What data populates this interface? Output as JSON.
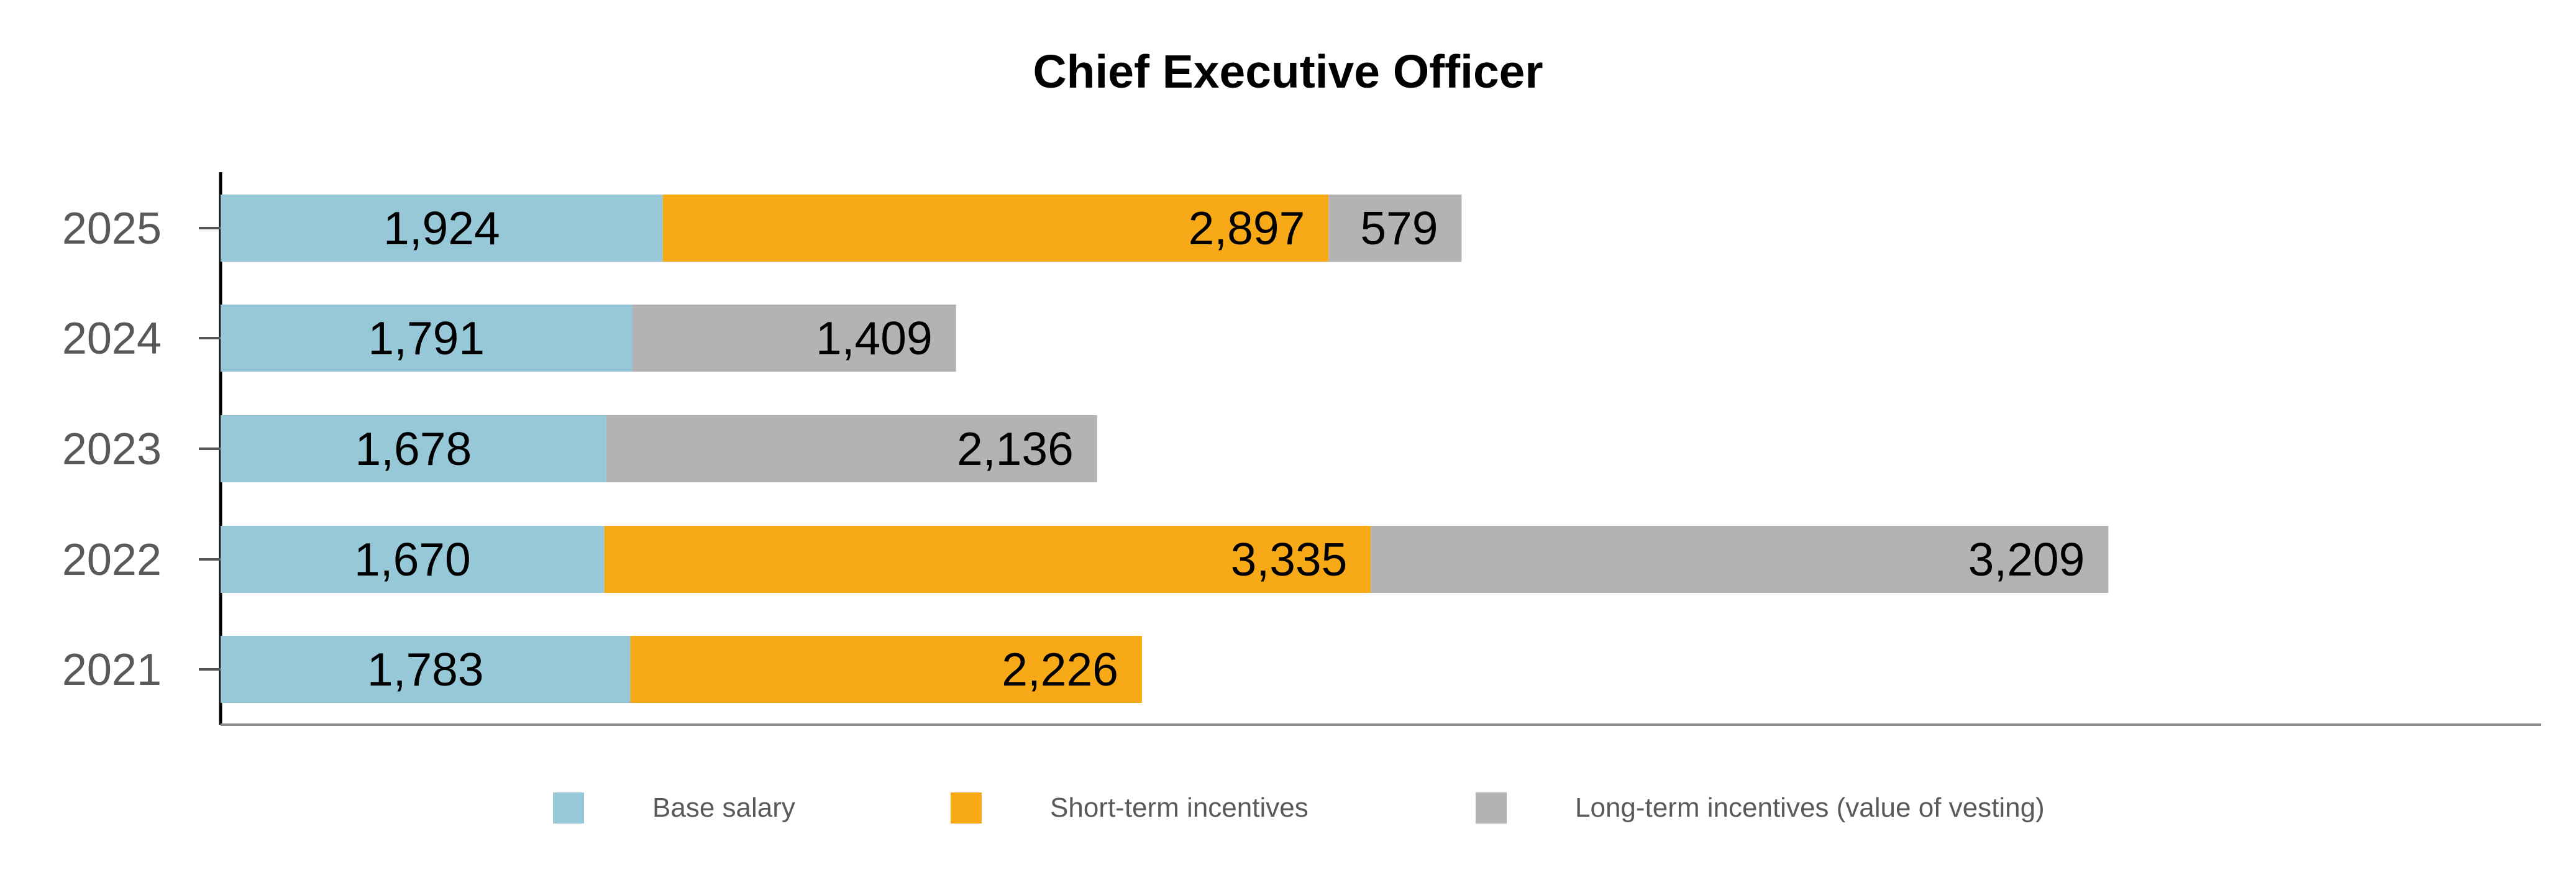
{
  "chart_data": {
    "type": "bar",
    "orientation": "horizontal",
    "stacked": true,
    "title": "Chief Executive Officer",
    "categories": [
      "2025",
      "2024",
      "2023",
      "2022",
      "2021"
    ],
    "series": [
      {
        "name": "Base salary",
        "color": "#97C8D8",
        "values": [
          1924,
          1791,
          1678,
          1670,
          1783
        ]
      },
      {
        "name": "Short-term incentives",
        "color": "#F7A918",
        "values": [
          2897,
          0,
          0,
          3335,
          2226
        ]
      },
      {
        "name": "Long-term incentives (value of vesting)",
        "color": "#B3B3B3",
        "values": [
          579,
          1409,
          2136,
          3209,
          0
        ]
      }
    ],
    "data_labels": [
      [
        "1,924",
        "1,791",
        "1,678",
        "1,670",
        "1,783"
      ],
      [
        "2,897",
        "",
        "",
        "3,335",
        "2,226"
      ],
      [
        "579",
        "1,409",
        "2,136",
        "3,209",
        ""
      ]
    ],
    "xlim": [
      0,
      9000
    ],
    "grid": false,
    "legend_position": "bottom"
  }
}
